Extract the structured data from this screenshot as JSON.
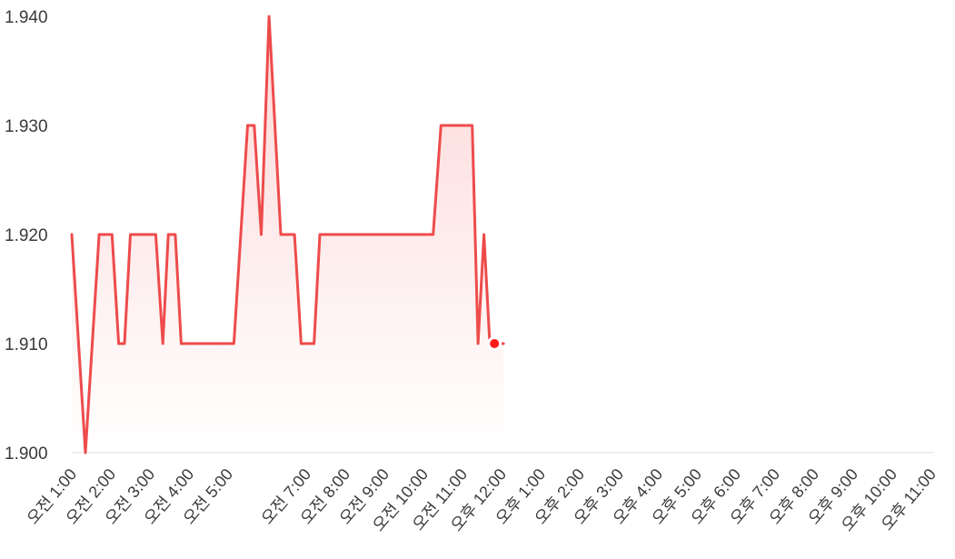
{
  "chart_data": {
    "type": "area",
    "title": "",
    "xlabel": "",
    "ylabel": "",
    "ylim": [
      1.9,
      1.94
    ],
    "yticks": [
      "1.940",
      "1.930",
      "1.920",
      "1.910",
      "1.900"
    ],
    "xlim": [
      0.95,
      23.0
    ],
    "xticks": [
      {
        "hour": 1,
        "label": "오전 1:00"
      },
      {
        "hour": 2,
        "label": "오전 2:00"
      },
      {
        "hour": 3,
        "label": "오전 3:00"
      },
      {
        "hour": 4,
        "label": "오전 4:00"
      },
      {
        "hour": 5,
        "label": "오전 5:00"
      },
      {
        "hour": 7,
        "label": "오전 7:00"
      },
      {
        "hour": 8,
        "label": "오전 8:00"
      },
      {
        "hour": 9,
        "label": "오전 9:00"
      },
      {
        "hour": 10,
        "label": "오전 10:00"
      },
      {
        "hour": 11,
        "label": "오전 11:00"
      },
      {
        "hour": 12,
        "label": "오후 12:00"
      },
      {
        "hour": 13,
        "label": "오후 1:00"
      },
      {
        "hour": 14,
        "label": "오후 2:00"
      },
      {
        "hour": 15,
        "label": "오후 3:00"
      },
      {
        "hour": 16,
        "label": "오후 4:00"
      },
      {
        "hour": 17,
        "label": "오후 5:00"
      },
      {
        "hour": 18,
        "label": "오후 6:00"
      },
      {
        "hour": 19,
        "label": "오후 7:00"
      },
      {
        "hour": 20,
        "label": "오후 8:00"
      },
      {
        "hour": 21,
        "label": "오후 9:00"
      },
      {
        "hour": 22,
        "label": "오후 10:00"
      },
      {
        "hour": 23,
        "label": "오후 11:00"
      }
    ],
    "series": [
      {
        "color": "#ee4b4b",
        "points": [
          [
            0.95,
            1.92
          ],
          [
            1.3,
            1.9
          ],
          [
            1.65,
            1.92
          ],
          [
            1.98,
            1.92
          ],
          [
            2.15,
            1.91
          ],
          [
            2.3,
            1.91
          ],
          [
            2.45,
            1.92
          ],
          [
            3.1,
            1.92
          ],
          [
            3.28,
            1.91
          ],
          [
            3.42,
            1.92
          ],
          [
            3.6,
            1.92
          ],
          [
            3.75,
            1.91
          ],
          [
            5.1,
            1.91
          ],
          [
            5.45,
            1.93
          ],
          [
            5.62,
            1.93
          ],
          [
            5.8,
            1.92
          ],
          [
            6.0,
            1.94
          ],
          [
            6.3,
            1.92
          ],
          [
            6.65,
            1.92
          ],
          [
            6.82,
            1.91
          ],
          [
            7.15,
            1.91
          ],
          [
            7.3,
            1.92
          ],
          [
            10.2,
            1.92
          ],
          [
            10.4,
            1.93
          ],
          [
            11.2,
            1.93
          ],
          [
            11.35,
            1.91
          ],
          [
            11.5,
            1.92
          ],
          [
            11.65,
            1.91
          ],
          [
            11.9,
            1.91
          ],
          [
            12.0,
            1.91
          ]
        ],
        "last_point": [
          11.77,
          1.91
        ]
      }
    ],
    "grid": false,
    "legend": "none",
    "fill_colors": [
      "#fdd8d8",
      "#ffffff"
    ],
    "axis_color": "#dddddd",
    "marker_color": "#ff1a1a"
  }
}
